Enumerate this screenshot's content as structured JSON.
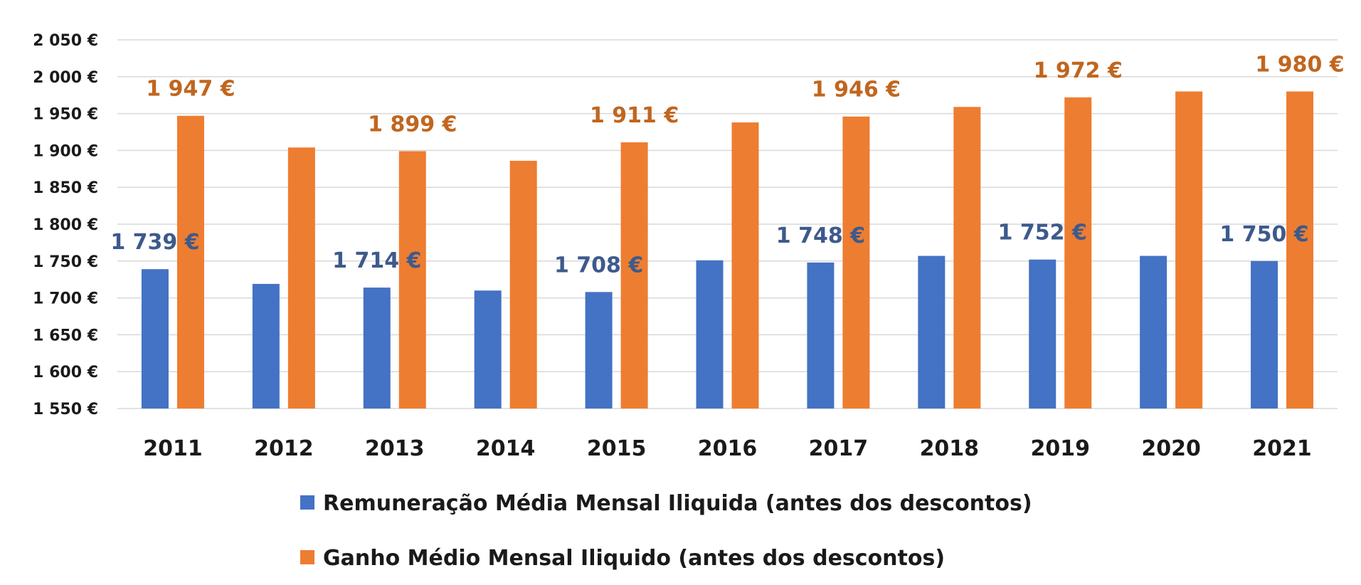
{
  "chart_data": {
    "type": "bar",
    "title": "",
    "xlabel": "",
    "ylabel": "",
    "categories": [
      "2011",
      "2012",
      "2013",
      "2014",
      "2015",
      "2016",
      "2017",
      "2018",
      "2019",
      "2020",
      "2021"
    ],
    "ylim": [
      1550,
      2050
    ],
    "yticks": [
      1550,
      1600,
      1650,
      1700,
      1750,
      1800,
      1850,
      1900,
      1950,
      2000,
      2050
    ],
    "ytick_labels": [
      "1 550 €",
      "1 600 €",
      "1 650 €",
      "1 700 €",
      "1 750 €",
      "1 800 €",
      "1 850 €",
      "1 900 €",
      "1 950 €",
      "2 000 €",
      "2 050 €"
    ],
    "grid": true,
    "legend_position": "bottom",
    "series": [
      {
        "name": "Remuneração Média Mensal Iliquida (antes dos descontos)",
        "color": "#4472c4",
        "label_color": "#3d5a8c",
        "values": [
          1739,
          1719,
          1714,
          1710,
          1708,
          1751,
          1748,
          1757,
          1752,
          1757,
          1750
        ],
        "data_labels": [
          "1 739 €",
          "",
          "1 714 €",
          "",
          "1 708 €",
          "",
          "1 748 €",
          "",
          "1 752 €",
          "",
          "1 750 €"
        ]
      },
      {
        "name": "Ganho Médio Mensal Iliquido (antes dos descontos)",
        "color": "#ed7d31",
        "label_color": "#c0661f",
        "values": [
          1947,
          1904,
          1899,
          1886,
          1911,
          1938,
          1946,
          1959,
          1972,
          1980,
          1980
        ],
        "data_labels": [
          "1 947 €",
          "",
          "1 899 €",
          "",
          "1 911 €",
          "",
          "1 946 €",
          "",
          "1 972 €",
          "",
          "1 980 €"
        ]
      }
    ]
  }
}
